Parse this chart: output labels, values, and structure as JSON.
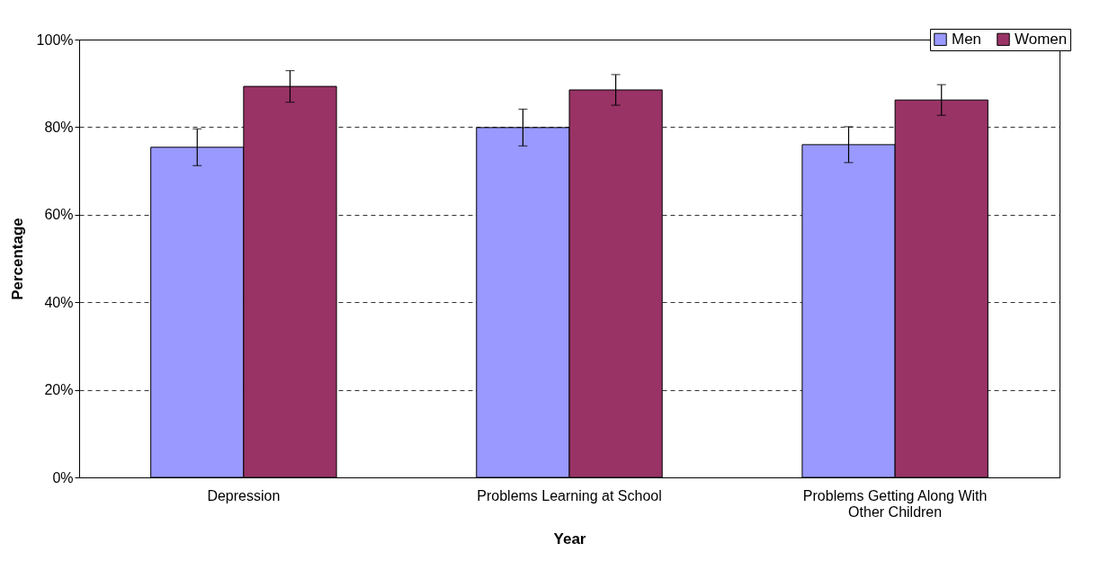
{
  "chart_data": {
    "type": "bar",
    "xlabel": "Year",
    "ylabel": "Percentage",
    "categories": [
      "Depression",
      "Problems Learning at School",
      "Problems Getting Along With Other Children"
    ],
    "series": [
      {
        "name": "Men",
        "color": "#9999ff",
        "values": [
          75.4,
          79.9,
          76.0
        ],
        "errors": [
          4.2,
          4.2,
          4.1
        ]
      },
      {
        "name": "Women",
        "color": "#993366",
        "values": [
          89.3,
          88.5,
          86.2
        ],
        "errors": [
          3.6,
          3.5,
          3.5
        ]
      }
    ],
    "ylim": [
      0,
      100
    ],
    "yticks": [
      {
        "value": 0,
        "label": "0%"
      },
      {
        "value": 20,
        "label": "20%"
      },
      {
        "value": 40,
        "label": "40%"
      },
      {
        "value": 60,
        "label": "60%"
      },
      {
        "value": 80,
        "label": "80%"
      },
      {
        "value": 100,
        "label": "100%"
      }
    ],
    "grid": "y",
    "legend": "top right"
  }
}
